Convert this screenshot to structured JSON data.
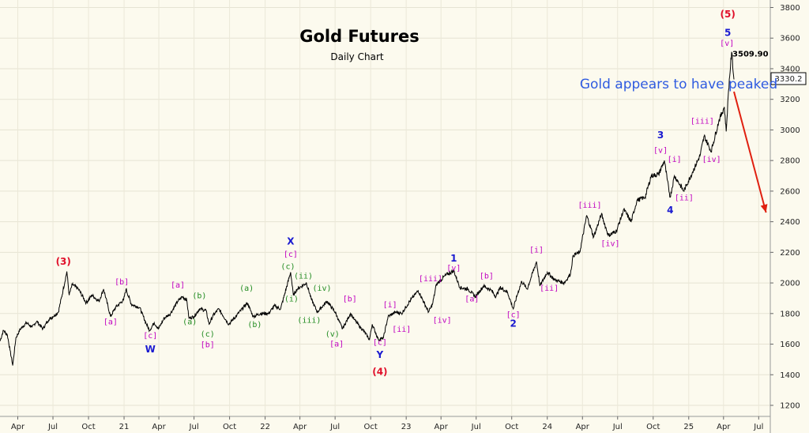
{
  "colors": {
    "background": "#fcfaee",
    "price_line": "#000000",
    "magenta": "#c000c0",
    "green": "#1f8a1f",
    "blue": "#1a1ad0",
    "red": "#e0102a",
    "note": "#2f5be0",
    "arrow": "#e02010"
  },
  "chart_data": {
    "type": "line",
    "title": "Gold Futures",
    "subtitle": "Daily Chart",
    "ylim": [
      1200,
      3800
    ],
    "y_ticks": [
      1200,
      1400,
      1600,
      1800,
      2000,
      2200,
      2400,
      2600,
      2800,
      3000,
      3200,
      3400,
      3600,
      3800
    ],
    "x_range": [
      "2020-02-15",
      "2025-07-31"
    ],
    "x_ticks": [
      {
        "label": "Apr",
        "date": "2020-04-01"
      },
      {
        "label": "Jul",
        "date": "2020-07-01"
      },
      {
        "label": "Oct",
        "date": "2020-10-01"
      },
      {
        "label": "21",
        "date": "2021-01-01"
      },
      {
        "label": "Apr",
        "date": "2021-04-01"
      },
      {
        "label": "Jul",
        "date": "2021-07-01"
      },
      {
        "label": "Oct",
        "date": "2021-10-01"
      },
      {
        "label": "22",
        "date": "2022-01-01"
      },
      {
        "label": "Apr",
        "date": "2022-04-01"
      },
      {
        "label": "Jul",
        "date": "2022-07-01"
      },
      {
        "label": "Oct",
        "date": "2022-10-01"
      },
      {
        "label": "23",
        "date": "2023-01-01"
      },
      {
        "label": "Apr",
        "date": "2023-04-01"
      },
      {
        "label": "Jul",
        "date": "2023-07-01"
      },
      {
        "label": "Oct",
        "date": "2023-10-01"
      },
      {
        "label": "24",
        "date": "2024-01-01"
      },
      {
        "label": "Apr",
        "date": "2024-04-01"
      },
      {
        "label": "Jul",
        "date": "2024-07-01"
      },
      {
        "label": "Oct",
        "date": "2024-10-01"
      },
      {
        "label": "25",
        "date": "2025-01-01"
      },
      {
        "label": "Apr",
        "date": "2025-04-01"
      },
      {
        "label": "Jul",
        "date": "2025-07-01"
      }
    ],
    "series": [
      {
        "name": "",
        "points": [
          [
            "2020-02-15",
            1620
          ],
          [
            "2020-02-24",
            1690
          ],
          [
            "2020-03-05",
            1660
          ],
          [
            "2020-03-12",
            1560
          ],
          [
            "2020-03-19",
            1460
          ],
          [
            "2020-03-27",
            1640
          ],
          [
            "2020-04-08",
            1700
          ],
          [
            "2020-04-24",
            1740
          ],
          [
            "2020-05-08",
            1710
          ],
          [
            "2020-05-20",
            1750
          ],
          [
            "2020-06-05",
            1700
          ],
          [
            "2020-06-20",
            1760
          ],
          [
            "2020-07-01",
            1780
          ],
          [
            "2020-07-15",
            1810
          ],
          [
            "2020-07-27",
            1950
          ],
          [
            "2020-08-06",
            2075
          ],
          [
            "2020-08-12",
            1920
          ],
          [
            "2020-08-20",
            1990
          ],
          [
            "2020-09-05",
            1960
          ],
          [
            "2020-09-25",
            1870
          ],
          [
            "2020-10-10",
            1920
          ],
          [
            "2020-10-28",
            1880
          ],
          [
            "2020-11-09",
            1960
          ],
          [
            "2020-11-27",
            1780
          ],
          [
            "2020-12-10",
            1840
          ],
          [
            "2020-12-31",
            1890
          ],
          [
            "2021-01-06",
            1960
          ],
          [
            "2021-01-20",
            1860
          ],
          [
            "2021-02-10",
            1840
          ],
          [
            "2021-02-28",
            1730
          ],
          [
            "2021-03-08",
            1690
          ],
          [
            "2021-03-20",
            1740
          ],
          [
            "2021-03-31",
            1700
          ],
          [
            "2021-04-15",
            1770
          ],
          [
            "2021-05-01",
            1800
          ],
          [
            "2021-05-20",
            1880
          ],
          [
            "2021-06-01",
            1910
          ],
          [
            "2021-06-12",
            1890
          ],
          [
            "2021-06-18",
            1770
          ],
          [
            "2021-07-01",
            1780
          ],
          [
            "2021-07-15",
            1830
          ],
          [
            "2021-08-01",
            1820
          ],
          [
            "2021-08-09",
            1730
          ],
          [
            "2021-08-20",
            1790
          ],
          [
            "2021-09-03",
            1830
          ],
          [
            "2021-09-29",
            1730
          ],
          [
            "2021-10-20",
            1790
          ],
          [
            "2021-11-16",
            1870
          ],
          [
            "2021-12-01",
            1780
          ],
          [
            "2021-12-20",
            1800
          ],
          [
            "2022-01-10",
            1800
          ],
          [
            "2022-01-25",
            1850
          ],
          [
            "2022-02-10",
            1830
          ],
          [
            "2022-03-08",
            2070
          ],
          [
            "2022-03-15",
            1920
          ],
          [
            "2022-03-25",
            1960
          ],
          [
            "2022-04-18",
            2000
          ],
          [
            "2022-05-01",
            1890
          ],
          [
            "2022-05-16",
            1810
          ],
          [
            "2022-06-10",
            1880
          ],
          [
            "2022-07-01",
            1810
          ],
          [
            "2022-07-20",
            1700
          ],
          [
            "2022-08-10",
            1800
          ],
          [
            "2022-08-20",
            1760
          ],
          [
            "2022-09-01",
            1720
          ],
          [
            "2022-09-15",
            1680
          ],
          [
            "2022-09-28",
            1630
          ],
          [
            "2022-10-05",
            1730
          ],
          [
            "2022-10-21",
            1630
          ],
          [
            "2022-11-03",
            1640
          ],
          [
            "2022-11-15",
            1780
          ],
          [
            "2022-12-05",
            1810
          ],
          [
            "2022-12-20",
            1800
          ],
          [
            "2023-01-10",
            1880
          ],
          [
            "2023-02-01",
            1950
          ],
          [
            "2023-02-28",
            1810
          ],
          [
            "2023-03-10",
            1860
          ],
          [
            "2023-03-20",
            1990
          ],
          [
            "2023-04-13",
            2050
          ],
          [
            "2023-05-04",
            2080
          ],
          [
            "2023-05-20",
            1970
          ],
          [
            "2023-06-10",
            1960
          ],
          [
            "2023-06-29",
            1910
          ],
          [
            "2023-07-20",
            1980
          ],
          [
            "2023-08-10",
            1950
          ],
          [
            "2023-08-21",
            1910
          ],
          [
            "2023-09-01",
            1970
          ],
          [
            "2023-09-20",
            1940
          ],
          [
            "2023-10-05",
            1830
          ],
          [
            "2023-10-15",
            1920
          ],
          [
            "2023-10-27",
            2010
          ],
          [
            "2023-11-10",
            1960
          ],
          [
            "2023-12-04",
            2140
          ],
          [
            "2023-12-13",
            1980
          ],
          [
            "2024-01-01",
            2070
          ],
          [
            "2024-01-20",
            2020
          ],
          [
            "2024-02-14",
            2000
          ],
          [
            "2024-03-01",
            2060
          ],
          [
            "2024-03-08",
            2180
          ],
          [
            "2024-03-25",
            2200
          ],
          [
            "2024-04-12",
            2440
          ],
          [
            "2024-04-30",
            2300
          ],
          [
            "2024-05-20",
            2450
          ],
          [
            "2024-06-07",
            2310
          ],
          [
            "2024-06-28",
            2340
          ],
          [
            "2024-07-17",
            2480
          ],
          [
            "2024-08-05",
            2400
          ],
          [
            "2024-08-20",
            2540
          ],
          [
            "2024-09-10",
            2560
          ],
          [
            "2024-09-26",
            2700
          ],
          [
            "2024-10-15",
            2710
          ],
          [
            "2024-10-30",
            2800
          ],
          [
            "2024-11-06",
            2680
          ],
          [
            "2024-11-14",
            2560
          ],
          [
            "2024-11-25",
            2700
          ],
          [
            "2024-12-05",
            2660
          ],
          [
            "2024-12-19",
            2600
          ],
          [
            "2025-01-10",
            2720
          ],
          [
            "2025-01-30",
            2830
          ],
          [
            "2025-02-10",
            2960
          ],
          [
            "2025-02-28",
            2860
          ],
          [
            "2025-03-20",
            3060
          ],
          [
            "2025-04-03",
            3150
          ],
          [
            "2025-04-08",
            2990
          ],
          [
            "2025-04-14",
            3260
          ],
          [
            "2025-04-22",
            3509.9
          ],
          [
            "2025-04-28",
            3330
          ]
        ]
      }
    ],
    "last_price": "3330.2",
    "annotations": [
      {
        "text": "3509.90",
        "x": "2025-04-24",
        "y": 3480,
        "style": "peak"
      },
      {
        "text": "Gold appears to have peaked",
        "x": "2024-03-25",
        "y": 3270,
        "style": "note"
      },
      {
        "text": "(3)",
        "x": "2020-07-28",
        "y": 2120,
        "color": "red",
        "style": "big"
      },
      {
        "text": "(4)",
        "x": "2022-10-25",
        "y": 1400,
        "color": "red",
        "style": "big"
      },
      {
        "text": "(5)",
        "x": "2025-04-12",
        "y": 3735,
        "color": "red",
        "style": "big"
      },
      {
        "text": "W",
        "x": "2021-03-10",
        "y": 1545,
        "color": "blue",
        "style": "big"
      },
      {
        "text": "X",
        "x": "2022-03-08",
        "y": 2250,
        "color": "blue",
        "style": "big"
      },
      {
        "text": "Y",
        "x": "2022-10-25",
        "y": 1510,
        "color": "blue",
        "style": "big"
      },
      {
        "text": "1",
        "x": "2023-05-04",
        "y": 2140,
        "color": "blue",
        "style": "big"
      },
      {
        "text": "2",
        "x": "2023-10-05",
        "y": 1715,
        "color": "blue",
        "style": "big"
      },
      {
        "text": "3",
        "x": "2024-10-20",
        "y": 2945,
        "color": "blue",
        "style": "big"
      },
      {
        "text": "4",
        "x": "2024-11-14",
        "y": 2455,
        "color": "blue",
        "style": "big"
      },
      {
        "text": "5",
        "x": "2025-04-12",
        "y": 3615,
        "color": "blue",
        "style": "big"
      },
      {
        "text": "[b]",
        "x": "2020-12-26",
        "y": 1990,
        "color": "magenta"
      },
      {
        "text": "[a]",
        "x": "2020-11-27",
        "y": 1730,
        "color": "magenta"
      },
      {
        "text": "[c]",
        "x": "2021-03-10",
        "y": 1640,
        "color": "magenta"
      },
      {
        "text": "[a]",
        "x": "2021-05-20",
        "y": 1970,
        "color": "magenta"
      },
      {
        "text": "(a)",
        "x": "2021-06-20",
        "y": 1730,
        "color": "green"
      },
      {
        "text": "(b)",
        "x": "2021-07-15",
        "y": 1900,
        "color": "green"
      },
      {
        "text": "(c)",
        "x": "2021-08-05",
        "y": 1650,
        "color": "green"
      },
      {
        "text": "[b]",
        "x": "2021-08-05",
        "y": 1580,
        "color": "magenta"
      },
      {
        "text": "(a)",
        "x": "2021-11-14",
        "y": 1950,
        "color": "green"
      },
      {
        "text": "(b)",
        "x": "2021-12-05",
        "y": 1710,
        "color": "green"
      },
      {
        "text": "[c]",
        "x": "2022-03-08",
        "y": 2170,
        "color": "magenta"
      },
      {
        "text": "(c)",
        "x": "2022-03-01",
        "y": 2090,
        "color": "green"
      },
      {
        "text": "(ii)",
        "x": "2022-04-10",
        "y": 2030,
        "color": "green"
      },
      {
        "text": "(i)",
        "x": "2022-03-10",
        "y": 1880,
        "color": "green"
      },
      {
        "text": "(iv)",
        "x": "2022-05-28",
        "y": 1950,
        "color": "green"
      },
      {
        "text": "(iii)",
        "x": "2022-04-25",
        "y": 1740,
        "color": "green"
      },
      {
        "text": "(v)",
        "x": "2022-06-24",
        "y": 1650,
        "color": "green"
      },
      {
        "text": "[b]",
        "x": "2022-08-08",
        "y": 1880,
        "color": "magenta"
      },
      {
        "text": "[a]",
        "x": "2022-07-05",
        "y": 1585,
        "color": "magenta"
      },
      {
        "text": "[c]",
        "x": "2022-10-25",
        "y": 1595,
        "color": "magenta"
      },
      {
        "text": "[i]",
        "x": "2022-11-20",
        "y": 1840,
        "color": "magenta"
      },
      {
        "text": "[ii]",
        "x": "2022-12-20",
        "y": 1680,
        "color": "magenta"
      },
      {
        "text": "[iii]",
        "x": "2023-03-05",
        "y": 2010,
        "color": "magenta"
      },
      {
        "text": "[iv]",
        "x": "2023-04-04",
        "y": 1740,
        "color": "magenta"
      },
      {
        "text": "[v]",
        "x": "2023-05-04",
        "y": 2080,
        "color": "magenta"
      },
      {
        "text": "[a]",
        "x": "2023-06-20",
        "y": 1880,
        "color": "magenta"
      },
      {
        "text": "[b]",
        "x": "2023-07-28",
        "y": 2030,
        "color": "magenta"
      },
      {
        "text": "[c]",
        "x": "2023-10-05",
        "y": 1775,
        "color": "magenta"
      },
      {
        "text": "[i]",
        "x": "2023-12-04",
        "y": 2200,
        "color": "magenta"
      },
      {
        "text": "[ii]",
        "x": "2024-01-06",
        "y": 1950,
        "color": "magenta"
      },
      {
        "text": "[iii]",
        "x": "2024-04-20",
        "y": 2490,
        "color": "magenta"
      },
      {
        "text": "[iv]",
        "x": "2024-06-12",
        "y": 2240,
        "color": "magenta"
      },
      {
        "text": "[v]",
        "x": "2024-10-20",
        "y": 2850,
        "color": "magenta"
      },
      {
        "text": "[i]",
        "x": "2024-11-25",
        "y": 2790,
        "color": "magenta"
      },
      {
        "text": "[ii]",
        "x": "2024-12-20",
        "y": 2540,
        "color": "magenta"
      },
      {
        "text": "[iii]",
        "x": "2025-02-05",
        "y": 3040,
        "color": "magenta"
      },
      {
        "text": "[iv]",
        "x": "2025-03-01",
        "y": 2790,
        "color": "magenta"
      },
      {
        "text": "[v]",
        "x": "2025-04-10",
        "y": 3550,
        "color": "magenta"
      }
    ],
    "arrow": {
      "from": [
        "2025-04-28",
        3250
      ],
      "to": [
        "2025-07-20",
        2460
      ],
      "color": "arrow"
    }
  }
}
